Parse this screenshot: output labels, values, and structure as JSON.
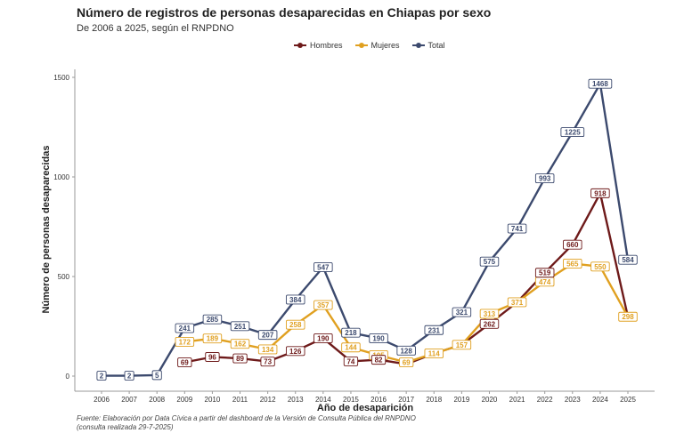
{
  "chart_data": {
    "type": "line",
    "title": "Número de registros de personas desaparecidas en Chiapas por sexo",
    "subtitle": "De 2006 a 2025, según el RNPDNO",
    "xlabel": "Año de desaparición",
    "ylabel": "Número de personas desaparecidas",
    "x": [
      2006,
      2007,
      2008,
      2009,
      2010,
      2011,
      2012,
      2013,
      2014,
      2015,
      2016,
      2017,
      2018,
      2019,
      2020,
      2021,
      2022,
      2023,
      2024,
      2025
    ],
    "ylim": [
      0,
      1500
    ],
    "yticks": [
      0,
      500,
      1000,
      1500
    ],
    "legend_position": "top-center",
    "series": [
      {
        "name": "Hombres",
        "color": "#6e1a1a",
        "values": [
          null,
          null,
          null,
          69,
          96,
          89,
          73,
          126,
          190,
          74,
          82,
          60,
          114,
          157,
          262,
          371,
          519,
          660,
          918,
          298
        ]
      },
      {
        "name": "Mujeres",
        "color": "#e0a020",
        "values": [
          null,
          null,
          null,
          172,
          189,
          162,
          134,
          258,
          357,
          144,
          105,
          69,
          114,
          157,
          313,
          371,
          474,
          565,
          550,
          298
        ]
      },
      {
        "name": "Total",
        "color": "#3c4a6e",
        "values": [
          2,
          2,
          5,
          241,
          285,
          251,
          207,
          384,
          547,
          218,
          190,
          128,
          231,
          321,
          575,
          741,
          993,
          1225,
          1468,
          584
        ]
      }
    ],
    "labels": {
      "Hombres": [
        null,
        null,
        null,
        69,
        96,
        89,
        73,
        126,
        190,
        74,
        82,
        null,
        null,
        null,
        262,
        null,
        519,
        660,
        918,
        null
      ],
      "Mujeres": [
        null,
        null,
        null,
        172,
        189,
        162,
        134,
        258,
        357,
        144,
        105,
        69,
        114,
        157,
        313,
        371,
        474,
        565,
        550,
        298
      ],
      "Total": [
        2,
        2,
        5,
        241,
        285,
        251,
        207,
        384,
        547,
        218,
        190,
        128,
        231,
        321,
        575,
        741,
        993,
        1225,
        1468,
        584
      ]
    }
  },
  "caption": {
    "line1": "Fuente: Elaboración por Data Cívica a partir del dashboard de la Versión de Consulta Pública del RNPDNO",
    "line2": "(consulta realizada 29-7-2025)"
  }
}
